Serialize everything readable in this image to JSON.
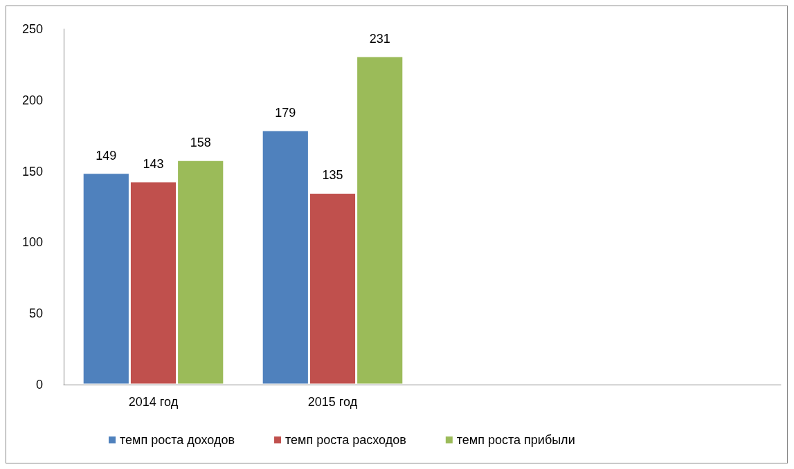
{
  "chart_data": {
    "type": "bar",
    "categories": [
      "2014 год",
      "2015 год",
      null,
      null
    ],
    "series": [
      {
        "name": "темп роста доходов",
        "color": "#4f81bd",
        "values": [
          149,
          179,
          null,
          null
        ]
      },
      {
        "name": "темп роста расходов",
        "color": "#c0504d",
        "values": [
          143,
          135,
          null,
          null
        ]
      },
      {
        "name": "темп роста прибыли",
        "color": "#9bbb59",
        "values": [
          158,
          231,
          null,
          null
        ]
      }
    ],
    "ylim": [
      0,
      250
    ],
    "yticks": [
      0,
      50,
      100,
      150,
      200,
      250
    ],
    "grid": false,
    "legend": "bottom",
    "data_labels": true
  }
}
